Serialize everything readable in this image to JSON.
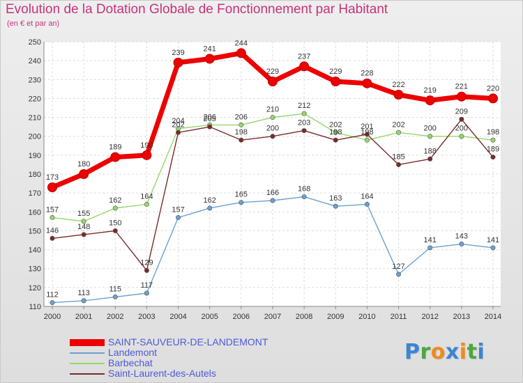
{
  "header": {
    "title": "Evolution de la Dotation Globale de Fonctionnement par Habitant",
    "subtitle": "(en € et par an)"
  },
  "logo": {
    "text": "Proxiti",
    "letters": [
      {
        "ch": "P",
        "color": "#3a86d4"
      },
      {
        "ch": "r",
        "color": "#4aa83e"
      },
      {
        "ch": "o",
        "color": "#f08a1c"
      },
      {
        "ch": "x",
        "color": "#3a86d4"
      },
      {
        "ch": "i",
        "color": "#f08a1c"
      },
      {
        "ch": "t",
        "color": "#4aa83e"
      },
      {
        "ch": "i",
        "color": "#3a86d4"
      }
    ]
  },
  "chart_data": {
    "type": "line",
    "title": "Evolution de la Dotation Globale de Fonctionnement par Habitant",
    "subtitle": "(en € et par an)",
    "xlabel": "",
    "ylabel": "",
    "ylim": [
      110,
      250
    ],
    "yticks": [
      110,
      120,
      130,
      140,
      150,
      160,
      170,
      180,
      190,
      200,
      210,
      220,
      230,
      240,
      250
    ],
    "grid": true,
    "legend_position": "bottom-left",
    "x": [
      "2000",
      "2001",
      "2002",
      "2003",
      "2004",
      "2005",
      "2006",
      "2007",
      "2008",
      "2009",
      "2010",
      "2011",
      "2012",
      "2013",
      "2014"
    ],
    "series": [
      {
        "name": "SAINT-SAUVEUR-DE-LANDEMONT",
        "color": "#ee0000",
        "values": [
          173,
          180,
          189,
          190,
          239,
          241,
          244,
          229,
          237,
          229,
          228,
          222,
          219,
          221,
          220
        ],
        "labels": [
          "173",
          "180",
          "189",
          "190",
          "239",
          "241",
          "244",
          "229",
          "237",
          "229",
          "228",
          "222",
          "219",
          "221",
          "220"
        ]
      },
      {
        "name": "Landemont",
        "color": "#6aa1d0",
        "values": [
          112,
          113,
          115,
          117,
          157,
          162,
          165,
          166,
          168,
          163,
          164,
          127,
          141,
          143,
          141
        ],
        "labels": [
          "112",
          "113",
          "115",
          "117",
          "157",
          "162",
          "165",
          "166",
          "168",
          "163",
          "164",
          "127",
          "141",
          "143",
          "141"
        ]
      },
      {
        "name": "Barbechat",
        "color": "#94d86a",
        "values": [
          157,
          155,
          162,
          164,
          204,
          206,
          206,
          210,
          212,
          202,
          198,
          202,
          200,
          200,
          198
        ],
        "labels": [
          "157",
          "155",
          "162",
          "164",
          "204",
          "206",
          "206",
          "210",
          "212",
          "202",
          "198",
          "202",
          "200",
          "200",
          "198"
        ]
      },
      {
        "name": "Saint-Laurent-des-Autels",
        "color": "#7a2a2a",
        "values": [
          146,
          148,
          150,
          129,
          202,
          205,
          198,
          200,
          203,
          198,
          201,
          185,
          188,
          209,
          189
        ],
        "labels": [
          "146",
          "148",
          "150",
          "129",
          "202",
          "205",
          "198",
          "200",
          "203",
          "198",
          "201",
          "185",
          "188",
          "209",
          "189"
        ]
      }
    ]
  }
}
